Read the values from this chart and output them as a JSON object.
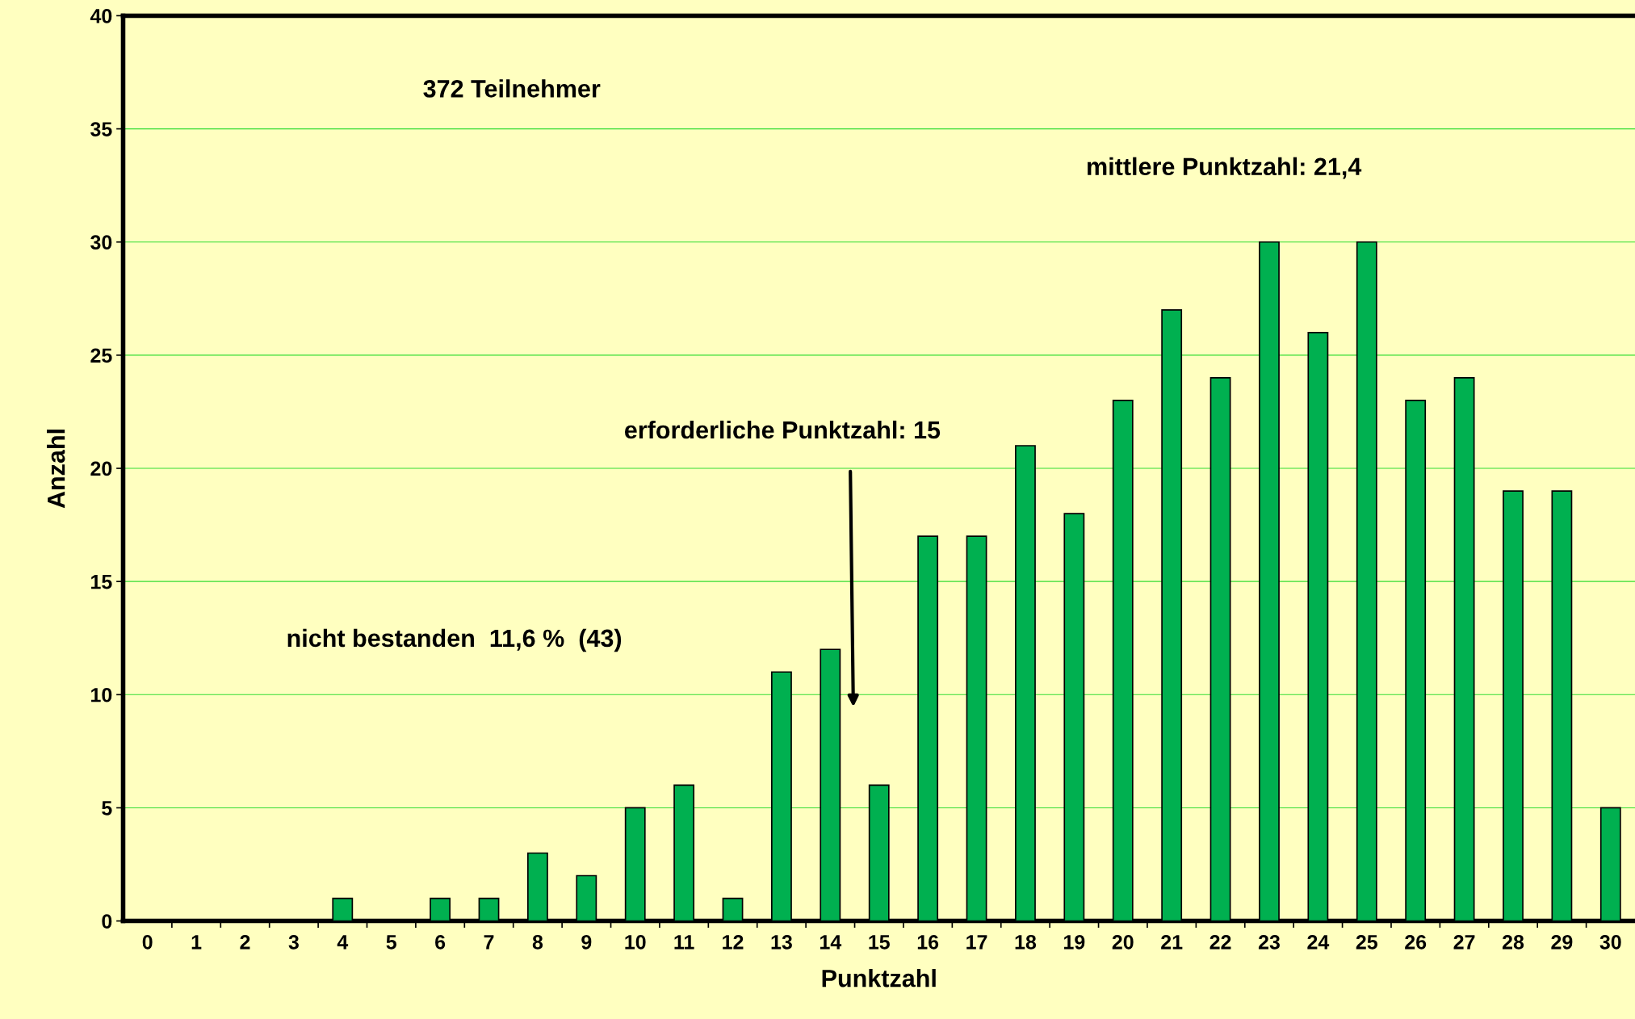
{
  "chart_data": {
    "type": "bar",
    "xlabel": "Punktzahl",
    "ylabel": "Anzahl",
    "categories": [
      "0",
      "1",
      "2",
      "3",
      "4",
      "5",
      "6",
      "7",
      "8",
      "9",
      "10",
      "11",
      "12",
      "13",
      "14",
      "15",
      "16",
      "17",
      "18",
      "19",
      "20",
      "21",
      "22",
      "23",
      "24",
      "25",
      "26",
      "27",
      "28",
      "29",
      "30"
    ],
    "values": [
      0,
      0,
      0,
      0,
      1,
      0,
      1,
      1,
      3,
      2,
      5,
      6,
      1,
      11,
      12,
      6,
      17,
      17,
      21,
      18,
      23,
      27,
      24,
      30,
      26,
      30,
      23,
      24,
      19,
      19,
      5
    ],
    "color": "#00b050",
    "ylim": [
      0,
      40
    ],
    "yticks": [
      0,
      5,
      10,
      15,
      20,
      25,
      30,
      35,
      40
    ],
    "grid": "y",
    "annotations": [
      "372 Teilnehmer",
      "mittlere Punktzahl: 21,4",
      "erforderliche Punktzahl: 15",
      "nicht bestanden  11,6 %  (43)"
    ]
  }
}
